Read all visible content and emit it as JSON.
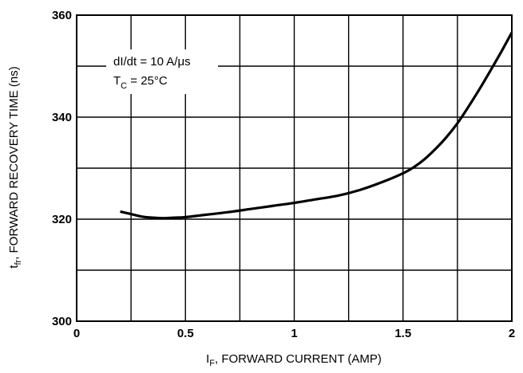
{
  "chart_data": {
    "type": "line",
    "title": "",
    "xlabel_main": "I",
    "xlabel_sub": "F",
    "xlabel_rest": ", FORWARD CURRENT (AMP)",
    "ylabel_main": "t",
    "ylabel_sub": "fr",
    "ylabel_rest": ", FORWARD RECOVERY TIME (ns)",
    "xlim": [
      0,
      2
    ],
    "ylim": [
      300,
      360
    ],
    "x_ticks": [
      0,
      0.5,
      1,
      1.5,
      2
    ],
    "x_tick_labels": [
      "0",
      "0.5",
      "1",
      "1.5",
      "2"
    ],
    "x_minor_grid": [
      0.25,
      0.75,
      1.25,
      1.75
    ],
    "y_ticks": [
      300,
      320,
      340,
      360
    ],
    "y_tick_labels": [
      "300",
      "320",
      "340",
      "360"
    ],
    "y_minor_grid": [
      310,
      330,
      350
    ],
    "grid": true,
    "annotations": {
      "line1": "dI/dt = 10 A/μs",
      "line2_main": "T",
      "line2_sub": "C",
      "line2_rest": " = 25°C",
      "position": "top-left"
    },
    "series": [
      {
        "x": [
          0.2,
          0.25,
          0.3,
          0.35,
          0.4,
          0.45,
          0.5,
          0.6,
          0.7,
          0.8,
          0.9,
          1.0,
          1.1,
          1.2,
          1.3,
          1.4,
          1.5,
          1.55,
          1.6,
          1.65,
          1.7,
          1.75,
          1.8,
          1.85,
          1.9,
          1.95,
          2.0
        ],
        "y": [
          321.5,
          321.0,
          320.5,
          320.3,
          320.2,
          320.3,
          320.4,
          320.9,
          321.4,
          322.0,
          322.6,
          323.2,
          323.9,
          324.6,
          325.7,
          327.2,
          329.0,
          330.2,
          331.8,
          333.8,
          336.1,
          338.8,
          342.0,
          345.4,
          349.0,
          352.7,
          356.6
        ]
      }
    ]
  }
}
